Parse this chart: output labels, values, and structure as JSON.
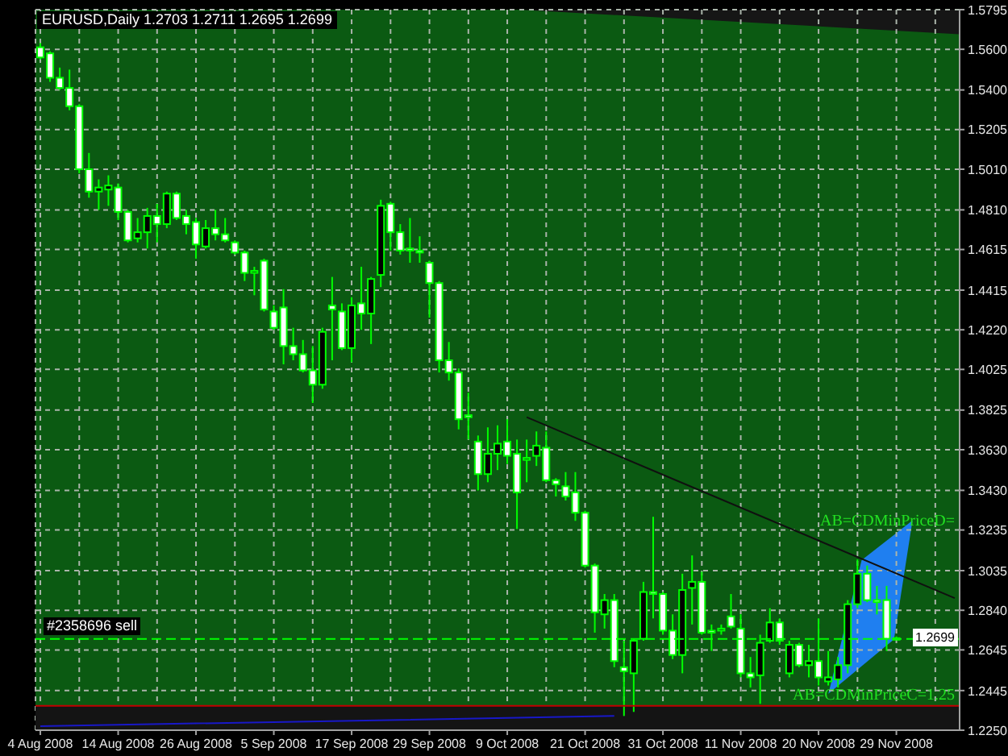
{
  "chart_data": {
    "type": "candlestick",
    "title": "EURUSD,Daily 1.2703 1.2711 1.2695 1.2699",
    "categories": [
      "4 Aug 2008",
      null,
      null,
      null,
      null,
      null,
      null,
      null,
      "14 Aug 2008",
      null,
      null,
      null,
      null,
      null,
      null,
      null,
      "26 Aug 2008",
      null,
      null,
      null,
      null,
      null,
      null,
      null,
      "5 Sep 2008",
      null,
      null,
      null,
      null,
      null,
      null,
      null,
      "17 Sep 2008",
      null,
      null,
      null,
      null,
      null,
      null,
      null,
      "29 Sep 2008",
      null,
      null,
      null,
      null,
      null,
      null,
      null,
      "9 Oct 2008",
      null,
      null,
      null,
      null,
      null,
      null,
      null,
      "21 Oct 2008",
      null,
      null,
      null,
      null,
      null,
      null,
      null,
      "31 Oct 2008",
      null,
      null,
      null,
      null,
      null,
      null,
      null,
      "11 Nov 2008",
      null,
      null,
      null,
      null,
      null,
      null,
      null,
      "20 Nov 2008",
      null,
      null,
      null,
      null,
      null,
      null,
      null,
      "29 Nov 2008",
      null,
      null,
      null,
      null,
      null,
      null
    ],
    "ohlc": [
      [
        1.561,
        1.563,
        1.555,
        1.556
      ],
      [
        1.558,
        1.559,
        1.544,
        1.546
      ],
      [
        1.546,
        1.551,
        1.54,
        1.541
      ],
      [
        1.541,
        1.55,
        1.53,
        1.532
      ],
      [
        1.532,
        1.533,
        1.499,
        1.501
      ],
      [
        1.501,
        1.509,
        1.487,
        1.49
      ],
      [
        1.49,
        1.496,
        1.481,
        1.492
      ],
      [
        1.491,
        1.498,
        1.483,
        1.493
      ],
      [
        1.492,
        1.494,
        1.476,
        1.48
      ],
      [
        1.48,
        1.481,
        1.465,
        1.466
      ],
      [
        1.467,
        1.477,
        1.465,
        1.47
      ],
      [
        1.47,
        1.482,
        1.462,
        1.478
      ],
      [
        1.478,
        1.484,
        1.465,
        1.474
      ],
      [
        1.474,
        1.49,
        1.472,
        1.489
      ],
      [
        1.489,
        1.49,
        1.476,
        1.477
      ],
      [
        1.478,
        1.481,
        1.469,
        1.474
      ],
      [
        1.475,
        1.477,
        1.457,
        1.464
      ],
      [
        1.463,
        1.476,
        1.462,
        1.472
      ],
      [
        1.472,
        1.481,
        1.466,
        1.469
      ],
      [
        1.469,
        1.477,
        1.465,
        1.466
      ],
      [
        1.465,
        1.466,
        1.459,
        1.46
      ],
      [
        1.46,
        1.461,
        1.446,
        1.45
      ],
      [
        1.45,
        1.453,
        1.439,
        1.451
      ],
      [
        1.456,
        1.457,
        1.431,
        1.432
      ],
      [
        1.431,
        1.434,
        1.422,
        1.423
      ],
      [
        1.433,
        1.442,
        1.405,
        1.414
      ],
      [
        1.414,
        1.423,
        1.407,
        1.41
      ],
      [
        1.41,
        1.417,
        1.401,
        1.402
      ],
      [
        1.402,
        1.414,
        1.386,
        1.395
      ],
      [
        1.395,
        1.423,
        1.393,
        1.421
      ],
      [
        1.434,
        1.448,
        1.407,
        1.432
      ],
      [
        1.431,
        1.435,
        1.412,
        1.413
      ],
      [
        1.413,
        1.438,
        1.406,
        1.434
      ],
      [
        1.435,
        1.453,
        1.422,
        1.43
      ],
      [
        1.43,
        1.448,
        1.415,
        1.447
      ],
      [
        1.449,
        1.486,
        1.443,
        1.483
      ],
      [
        1.484,
        1.485,
        1.461,
        1.47
      ],
      [
        1.47,
        1.474,
        1.459,
        1.461
      ],
      [
        1.462,
        1.477,
        1.455,
        1.461
      ],
      [
        1.461,
        1.468,
        1.455,
        1.46
      ],
      [
        1.455,
        1.456,
        1.428,
        1.445
      ],
      [
        1.445,
        1.446,
        1.401,
        1.407
      ],
      [
        1.407,
        1.416,
        1.397,
        1.401
      ],
      [
        1.401,
        1.403,
        1.373,
        1.378
      ],
      [
        1.38,
        1.391,
        1.368,
        1.379
      ],
      [
        1.367,
        1.37,
        1.343,
        1.351
      ],
      [
        1.351,
        1.374,
        1.347,
        1.361
      ],
      [
        1.361,
        1.375,
        1.353,
        1.366
      ],
      [
        1.367,
        1.378,
        1.356,
        1.36
      ],
      [
        1.361,
        1.368,
        1.324,
        1.342
      ],
      [
        1.358,
        1.368,
        1.347,
        1.359
      ],
      [
        1.36,
        1.372,
        1.355,
        1.365
      ],
      [
        1.364,
        1.372,
        1.347,
        1.348
      ],
      [
        1.348,
        1.349,
        1.34,
        1.346
      ],
      [
        1.345,
        1.352,
        1.338,
        1.34
      ],
      [
        1.342,
        1.352,
        1.328,
        1.332
      ],
      [
        1.332,
        1.333,
        1.305,
        1.306
      ],
      [
        1.306,
        1.307,
        1.273,
        1.283
      ],
      [
        1.282,
        1.292,
        1.275,
        1.289
      ],
      [
        1.289,
        1.292,
        1.256,
        1.259
      ],
      [
        1.256,
        1.269,
        1.232,
        1.254
      ],
      [
        1.253,
        1.27,
        1.234,
        1.269
      ],
      [
        1.27,
        1.298,
        1.269,
        1.293
      ],
      [
        1.293,
        1.33,
        1.28,
        1.292
      ],
      [
        1.292,
        1.293,
        1.272,
        1.274
      ],
      [
        1.274,
        1.282,
        1.26,
        1.262
      ],
      [
        1.262,
        1.302,
        1.253,
        1.294
      ],
      [
        1.295,
        1.311,
        1.277,
        1.298
      ],
      [
        1.298,
        1.303,
        1.272,
        1.273
      ],
      [
        1.274,
        1.277,
        1.264,
        1.273
      ],
      [
        1.274,
        1.277,
        1.272,
        1.275
      ],
      [
        1.281,
        1.292,
        1.275,
        1.276
      ],
      [
        1.275,
        1.282,
        1.251,
        1.253
      ],
      [
        1.253,
        1.261,
        1.246,
        1.251
      ],
      [
        1.252,
        1.272,
        1.238,
        1.268
      ],
      [
        1.269,
        1.285,
        1.268,
        1.278
      ],
      [
        1.278,
        1.28,
        1.267,
        1.269
      ],
      [
        1.253,
        1.269,
        1.251,
        1.267
      ],
      [
        1.267,
        1.268,
        1.256,
        1.257
      ],
      [
        1.257,
        1.267,
        1.251,
        1.259
      ],
      [
        1.259,
        1.28,
        1.247,
        1.251
      ],
      [
        1.249,
        1.264,
        1.247,
        1.251
      ],
      [
        1.25,
        1.261,
        1.246,
        1.257
      ],
      [
        1.257,
        1.289,
        1.253,
        1.287
      ],
      [
        1.287,
        1.309,
        1.285,
        1.302
      ],
      [
        1.302,
        1.306,
        1.288,
        1.289
      ],
      [
        1.289,
        1.296,
        1.282,
        1.288
      ],
      [
        1.289,
        1.296,
        1.264,
        1.27
      ],
      [
        1.2703,
        1.2711,
        1.2695,
        1.2699
      ],
      null,
      null,
      null,
      null,
      null,
      null
    ],
    "color": "#00ff00",
    "colors": [
      "#ffffff",
      "#ffffff",
      "#ffffff",
      "#ffffff",
      "#ffffff",
      "#ffffff",
      "#000000",
      "#000000",
      "#ffffff",
      "#ffffff",
      "#000000",
      "#000000",
      "#ffffff",
      "#000000",
      "#ffffff",
      "#ffffff",
      "#ffffff",
      "#000000",
      "#ffffff",
      "#ffffff",
      "#ffffff",
      "#ffffff",
      "#000000",
      "#ffffff",
      "#ffffff",
      "#ffffff",
      "#ffffff",
      "#ffffff",
      "#ffffff",
      "#000000",
      "#ffffff",
      "#ffffff",
      "#000000",
      "#ffffff",
      "#000000",
      "#000000",
      "#ffffff",
      "#ffffff",
      "#ffffff",
      "#ffffff",
      "#ffffff",
      "#ffffff",
      "#ffffff",
      "#ffffff",
      "#ffffff",
      "#ffffff",
      "#000000",
      "#000000",
      "#ffffff",
      "#ffffff",
      "#000000",
      "#000000",
      "#ffffff",
      "#ffffff",
      "#ffffff",
      "#ffffff",
      "#ffffff",
      "#ffffff",
      "#000000",
      "#ffffff",
      "#ffffff",
      "#000000",
      "#000000",
      "#ffffff",
      "#ffffff",
      "#ffffff",
      "#000000",
      "#000000",
      "#ffffff",
      "#ffffff",
      "#000000",
      "#ffffff",
      "#ffffff",
      "#ffffff",
      "#000000",
      "#000000",
      "#ffffff",
      "#000000",
      "#ffffff",
      "#000000",
      "#ffffff",
      "#000000",
      "#000000",
      "#000000",
      "#000000",
      "#ffffff",
      "#ffffff",
      "#ffffff",
      "#ffffff",
      null,
      null,
      null,
      null,
      null,
      null
    ],
    "series": [
      {
        "type": "line",
        "color": "#101010",
        "values": [
          null,
          null,
          null,
          null,
          null,
          null,
          null,
          null,
          null,
          null,
          null,
          null,
          null,
          null,
          null,
          null,
          null,
          null,
          null,
          null,
          null,
          null,
          null,
          null,
          null,
          null,
          null,
          null,
          null,
          null,
          null,
          null,
          null,
          null,
          null,
          null,
          null,
          null,
          null,
          null,
          null,
          null,
          null,
          null,
          null,
          null,
          null,
          null,
          null,
          null,
          1.379,
          null,
          null,
          null,
          null,
          null,
          null,
          null,
          null,
          null,
          null,
          null,
          null,
          null,
          null,
          null,
          null,
          null,
          null,
          null,
          null,
          null,
          null,
          null,
          null,
          null,
          null,
          null,
          null,
          null,
          null,
          null,
          null,
          null,
          null,
          null,
          null,
          null,
          null,
          null,
          null,
          null,
          null,
          null,
          1.29
        ]
      },
      {
        "type": "line",
        "color": "#1818c8",
        "values": [
          1.227,
          null,
          null,
          null,
          null,
          null,
          null,
          null,
          null,
          null,
          null,
          null,
          null,
          null,
          null,
          null,
          null,
          null,
          null,
          null,
          null,
          null,
          null,
          null,
          null,
          null,
          null,
          null,
          null,
          null,
          null,
          null,
          null,
          null,
          null,
          null,
          null,
          null,
          null,
          null,
          null,
          null,
          null,
          null,
          null,
          null,
          null,
          null,
          1.231,
          null,
          null,
          null,
          null,
          null,
          null,
          null,
          null,
          null,
          null,
          1.232,
          null,
          null,
          null,
          null,
          null,
          null,
          null,
          null,
          null,
          null,
          null,
          null,
          null,
          null,
          null,
          null,
          null,
          null,
          null,
          null,
          null,
          null,
          null,
          null,
          null,
          null,
          null,
          null,
          null,
          null,
          null,
          null,
          null,
          null,
          null
        ]
      }
    ],
    "ylim": [
      1.225,
      1.5795
    ],
    "yticks": [
      1.5795,
      {
        "value": 1.56,
        "label": "1.5600"
      },
      {
        "value": 1.54,
        "label": "1.5400"
      },
      1.5205,
      {
        "value": 1.501,
        "label": "1.5010"
      },
      {
        "value": 1.481,
        "label": "1.4810"
      },
      1.4615,
      1.4415,
      {
        "value": 1.422,
        "label": "1.4220"
      },
      1.4025,
      1.3825,
      {
        "value": 1.363,
        "label": "1.3630"
      },
      {
        "value": 1.343,
        "label": "1.3430"
      },
      1.3235,
      1.3035,
      {
        "value": 1.284,
        "label": "1.2840"
      },
      1.2645,
      1.2445,
      {
        "value": 1.225,
        "label": "1.2250"
      }
    ],
    "grid": true,
    "ref_lines": [
      {
        "axis": "y",
        "value": 1.2699,
        "label": "#2358696 sell",
        "color": "#00ff00",
        "line_style": "dashed"
      },
      {
        "axis": "y",
        "value": 1.237,
        "color": "#c00000"
      }
    ],
    "bands": [
      {
        "axis": "y",
        "from": 1.225,
        "to": 1.237,
        "color": "#141414"
      }
    ],
    "annotations": [
      "AB=CDMinPriceD=",
      "AB=CDMinPriceC=1.25",
      {
        "text": "1.2699",
        "y": 1.2699
      }
    ]
  }
}
